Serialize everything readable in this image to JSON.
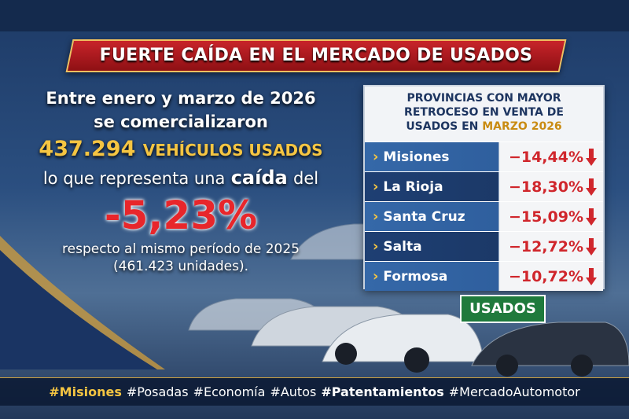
{
  "header": {
    "title": "FUERTE CAÍDA EN EL MERCADO DE USADOS"
  },
  "summary": {
    "line1": "Entre enero y marzo de 2026",
    "line2": "se comercializaron",
    "amount": "437.294",
    "amount_label": "VEHÍCULOS USADOS",
    "line4_before": "lo que representa una",
    "line4_emphasis": "caída",
    "line4_after": "del",
    "change": "-5,23%",
    "line5": "respecto al mismo período de 2025",
    "line6": "(461.423 unidades)."
  },
  "table": {
    "header_lines": [
      "PROVINCIAS CON MAYOR",
      "RETROCESO EN VENTA DE",
      "USADOS EN"
    ],
    "header_highlight": "MARZO 2026",
    "rows": [
      [
        "Misiones",
        "−14,44%"
      ],
      [
        "La Rioja",
        "−18,30%"
      ],
      [
        "Santa Cruz",
        "−15,09%"
      ],
      [
        "Salta",
        "−12,72%"
      ],
      [
        "Formosa",
        "−10,72%"
      ]
    ]
  },
  "sign": "USADOS",
  "hashtags": [
    "#Misiones",
    "#Posadas",
    "#Economía",
    "#Autos",
    "#Patentamientos",
    "#MercadoAutomotor"
  ]
}
